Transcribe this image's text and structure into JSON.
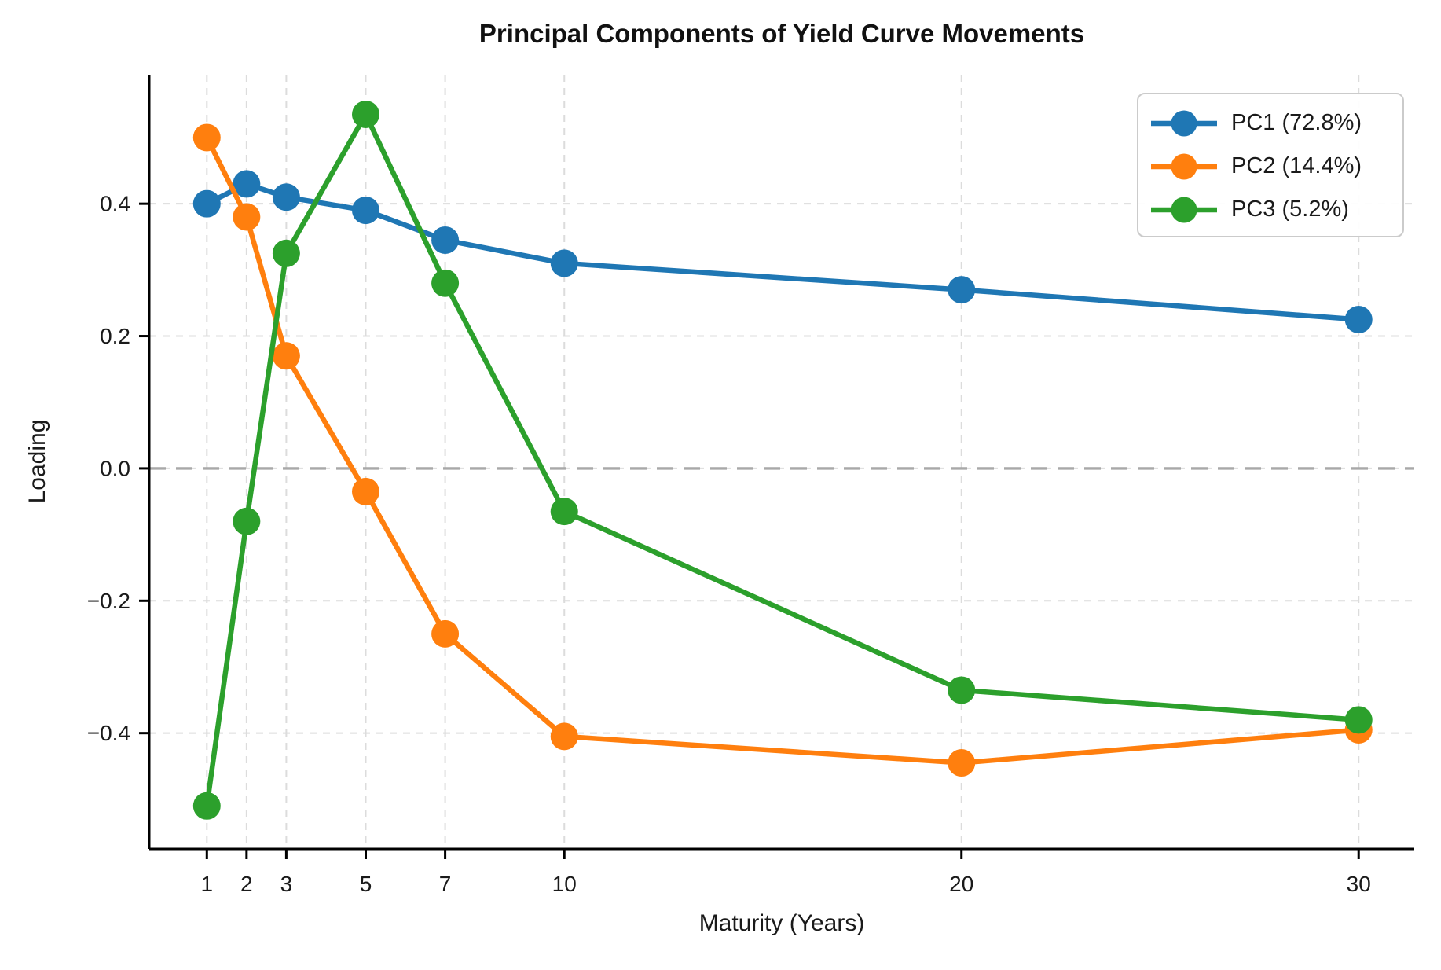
{
  "chart_data": {
    "type": "line",
    "title": "Principal Components of Yield Curve Movements",
    "xlabel": "Maturity (Years)",
    "ylabel": "Loading",
    "x": [
      1,
      2,
      3,
      5,
      7,
      10,
      20,
      30
    ],
    "x_tick_labels": [
      "1",
      "2",
      "3",
      "5",
      "7",
      "10",
      "20",
      "30"
    ],
    "y_ticks": [
      0.4,
      0.2,
      0.0,
      -0.2,
      -0.4
    ],
    "y_tick_labels": [
      "0.4",
      "0.2",
      "0.0",
      "−0.2",
      "−0.4"
    ],
    "xlim": [
      -0.45,
      31.4
    ],
    "ylim": [
      -0.575,
      0.595
    ],
    "grid": true,
    "zero_line_y": 0,
    "legend_position": "upper right",
    "series": [
      {
        "name": "PC1",
        "label": "PC1 (72.8%)",
        "color": "#1f77b4",
        "values": [
          0.4,
          0.43,
          0.41,
          0.39,
          0.345,
          0.31,
          0.27,
          0.225
        ]
      },
      {
        "name": "PC2",
        "label": "PC2 (14.4%)",
        "color": "#ff7f0e",
        "values": [
          0.5,
          0.38,
          0.17,
          -0.035,
          -0.25,
          -0.405,
          -0.445,
          -0.395
        ]
      },
      {
        "name": "PC3",
        "label": "PC3 (5.2%)",
        "color": "#2ca02c",
        "values": [
          -0.51,
          -0.08,
          0.325,
          0.535,
          0.28,
          -0.065,
          -0.335,
          -0.38
        ]
      }
    ]
  },
  "colors": {
    "grid": "#dcdcdc",
    "zero_line": "#a8a8a8",
    "spine": "#000000",
    "text": "#1a1a1a",
    "legend_border": "#cbcbcb",
    "background": "#ffffff"
  }
}
